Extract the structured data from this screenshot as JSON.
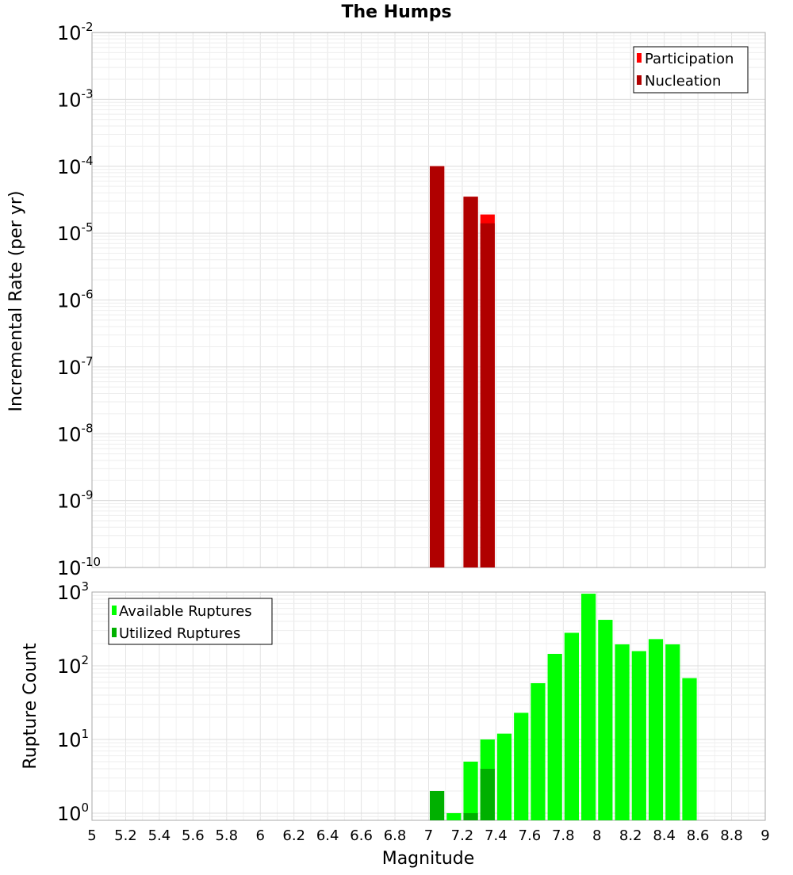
{
  "chart_data": [
    {
      "type": "bar",
      "title": "The Humps",
      "ylabel": "Incremental Rate (per yr)",
      "xlabel": "",
      "yscale": "log",
      "ylim": [
        1e-10,
        0.01
      ],
      "xlim": [
        5,
        9
      ],
      "y_tick_exponents": [
        "-10",
        "-9",
        "-8",
        "-7",
        "-6",
        "-5",
        "-4",
        "-3",
        "-2"
      ],
      "legend_position": "top-right",
      "series": [
        {
          "name": "Participation",
          "color": "#ff0000",
          "x": [
            7.05,
            7.25,
            7.35
          ],
          "values": [
            0.0001,
            3.5e-05,
            1.9e-05
          ]
        },
        {
          "name": "Nucleation",
          "color": "#b00000",
          "x": [
            7.05,
            7.25,
            7.35
          ],
          "values": [
            0.0001,
            3.5e-05,
            1.4e-05
          ]
        }
      ]
    },
    {
      "type": "bar",
      "title": "",
      "ylabel": "Rupture Count",
      "xlabel": "Magnitude",
      "yscale": "log",
      "ylim": [
        0.8,
        1000
      ],
      "xlim": [
        5,
        9
      ],
      "y_tick_exponents": [
        "0",
        "1",
        "2",
        "3"
      ],
      "x_ticks": [
        "5",
        "5.2",
        "5.4",
        "5.6",
        "5.8",
        "6",
        "6.2",
        "6.4",
        "6.6",
        "6.8",
        "7",
        "7.2",
        "7.4",
        "7.6",
        "7.8",
        "8",
        "8.2",
        "8.4",
        "8.6",
        "8.8",
        "9"
      ],
      "legend_position": "top-left",
      "series": [
        {
          "name": "Available Ruptures",
          "color": "#00ff00",
          "x": [
            7.15,
            7.25,
            7.35,
            7.45,
            7.55,
            7.65,
            7.75,
            7.85,
            7.95,
            8.05,
            8.15,
            8.25,
            8.35,
            8.45,
            8.55
          ],
          "values": [
            1,
            5,
            10,
            12,
            23,
            58,
            145,
            280,
            950,
            420,
            195,
            158,
            230,
            195,
            68
          ]
        },
        {
          "name": "Utilized Ruptures",
          "color": "#00b000",
          "x": [
            7.05,
            7.25,
            7.35
          ],
          "values": [
            2,
            1,
            4
          ]
        }
      ]
    }
  ]
}
